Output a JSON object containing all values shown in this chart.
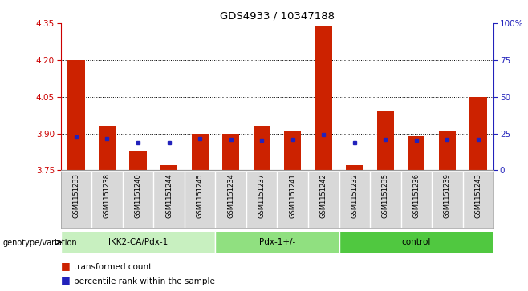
{
  "title": "GDS4933 / 10347188",
  "samples": [
    "GSM1151233",
    "GSM1151238",
    "GSM1151240",
    "GSM1151244",
    "GSM1151245",
    "GSM1151234",
    "GSM1151237",
    "GSM1151241",
    "GSM1151242",
    "GSM1151232",
    "GSM1151235",
    "GSM1151236",
    "GSM1151239",
    "GSM1151243"
  ],
  "red_values": [
    4.2,
    3.93,
    3.83,
    3.77,
    3.9,
    3.9,
    3.93,
    3.91,
    4.34,
    3.77,
    3.99,
    3.89,
    3.91,
    4.05
  ],
  "blue_values": [
    3.885,
    3.878,
    3.864,
    3.862,
    3.878,
    3.876,
    3.872,
    3.874,
    3.895,
    3.864,
    3.876,
    3.873,
    3.874,
    3.876
  ],
  "baseline": 3.75,
  "ylim": [
    3.75,
    4.35
  ],
  "y2lim": [
    0,
    100
  ],
  "y_ticks": [
    3.75,
    3.9,
    4.05,
    4.2,
    4.35
  ],
  "y2_ticks": [
    0,
    25,
    50,
    75,
    100
  ],
  "y2_labels": [
    "0",
    "25",
    "50",
    "75",
    "100%"
  ],
  "groups": [
    {
      "label": "IKK2-CA/Pdx-1",
      "start": 0,
      "end": 5,
      "color": "#c8f0c0"
    },
    {
      "label": "Pdx-1+/-",
      "start": 5,
      "end": 9,
      "color": "#90e080"
    },
    {
      "label": "control",
      "start": 9,
      "end": 14,
      "color": "#50c840"
    }
  ],
  "bar_color": "#cc2200",
  "blue_color": "#2222bb",
  "bar_width": 0.55,
  "grid_color": "#000000",
  "bg_color": "#ffffff",
  "xlabel_color": "#cc0000",
  "y2_label_color": "#2222bb",
  "genotype_label": "genotype/variation",
  "legend_red": "transformed count",
  "legend_blue": "percentile rank within the sample",
  "sample_box_color": "#d8d8d8"
}
